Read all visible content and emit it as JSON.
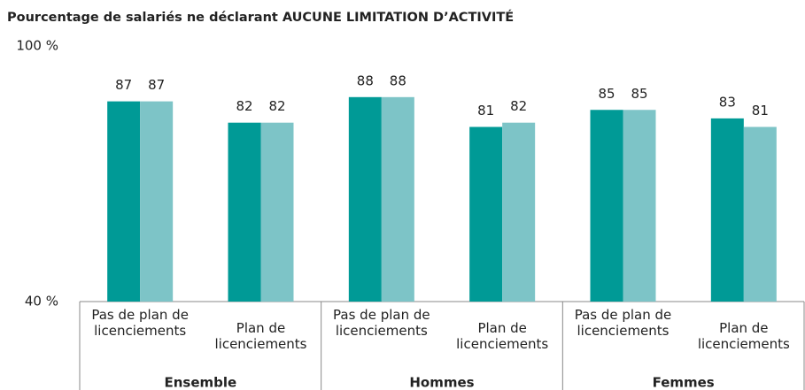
{
  "chart_data": {
    "type": "bar",
    "title": "Pourcentage de salariés ne déclarant AUCUNE LIMITATION D’ACTIVITÉ",
    "categories": [
      "Pas de plan de licenciements",
      "Plan de licenciements",
      "Pas de plan de licenciements",
      "Plan de licenciements",
      "Pas de plan de licenciements",
      "Plan de licenciements"
    ],
    "groups": [
      "Ensemble",
      "Hommes",
      "Femmes"
    ],
    "series": [
      {
        "color": "#009a96",
        "values": [
          87,
          82,
          88,
          81,
          85,
          83
        ]
      },
      {
        "color": "#7dc4c7",
        "values": [
          87,
          82,
          88,
          82,
          85,
          81
        ]
      }
    ],
    "ylim": [
      40,
      100
    ],
    "yticks": [
      {
        "value": 40,
        "label": "40 %"
      },
      {
        "value": 100,
        "label": "100 %"
      }
    ]
  }
}
